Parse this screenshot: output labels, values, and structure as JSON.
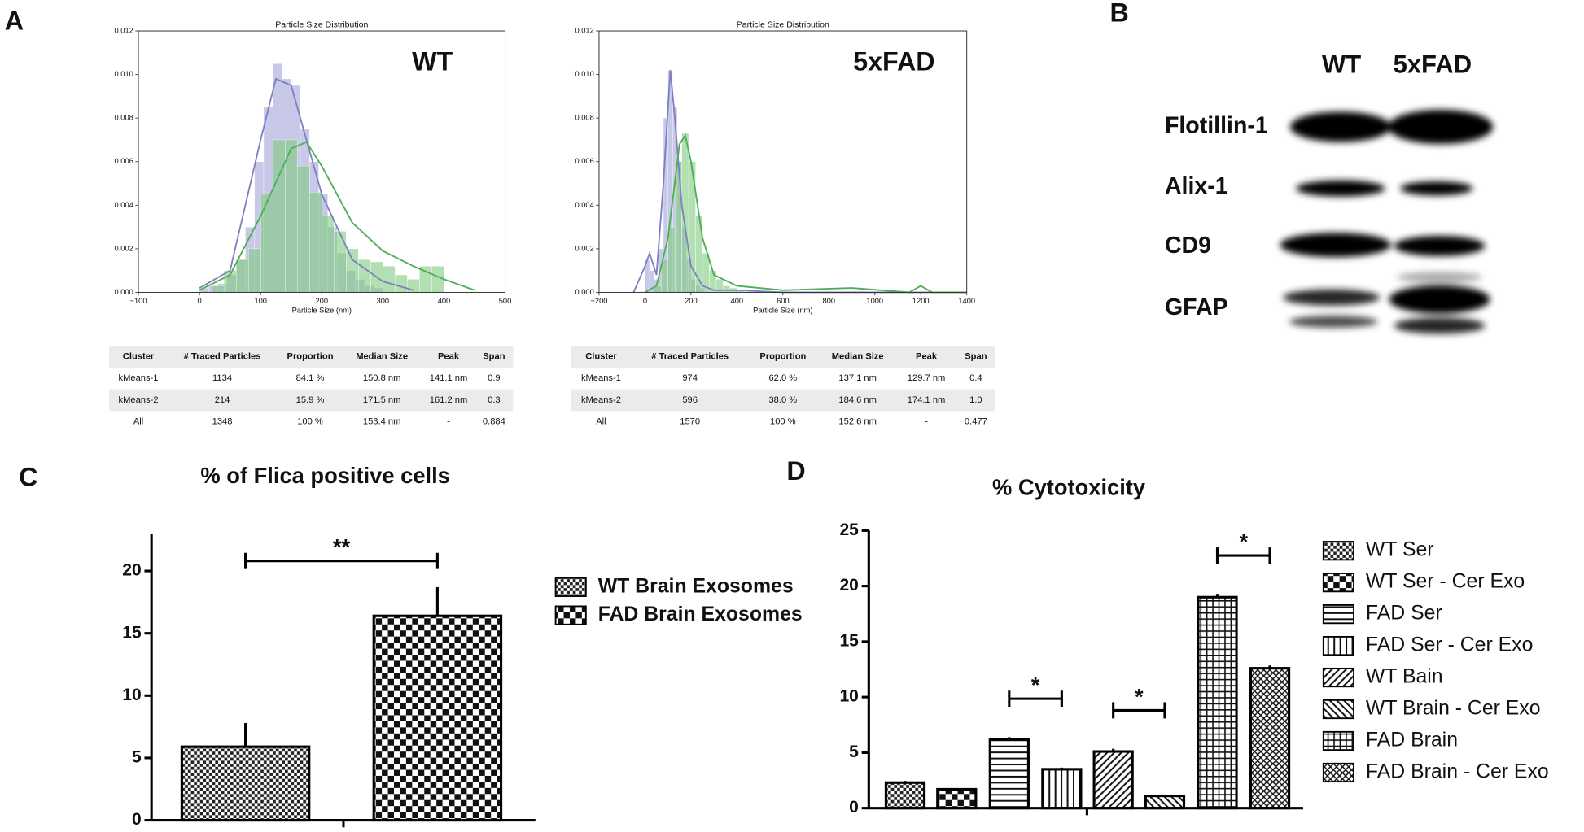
{
  "panel_labels": [
    "A",
    "B",
    "C",
    "D"
  ],
  "chart_data": [
    {
      "type": "histogram",
      "title": "Particle Size Distribution",
      "xlabel": "Particle Size (nm)",
      "label": "WT",
      "xlim": [
        -100,
        500
      ],
      "ylim": [
        0,
        0.012
      ],
      "xticks": [
        {
          "value": -100,
          "label": "−100"
        },
        0,
        100,
        200,
        300,
        400,
        500
      ],
      "yticks": [
        {
          "value": 0,
          "label": "0.000"
        },
        {
          "value": 0.002,
          "label": "0.002"
        },
        {
          "value": 0.004,
          "label": "0.004"
        },
        {
          "value": 0.006,
          "label": "0.006"
        },
        {
          "value": 0.008,
          "label": "0.008"
        },
        {
          "value": 0.01,
          "label": "0.010"
        },
        {
          "value": 0.012,
          "label": "0.012"
        }
      ],
      "series": [
        {
          "color": "#a4a4db",
          "bins": [
            0,
            15,
            30,
            45,
            60,
            75,
            90,
            105,
            120,
            135,
            150,
            165,
            180,
            195,
            210,
            225,
            240,
            255,
            270,
            285,
            300
          ],
          "values": [
            0.0002,
            0.0003,
            0.0004,
            0.0008,
            0.0015,
            0.003,
            0.006,
            0.0085,
            0.0105,
            0.0098,
            0.0095,
            0.0075,
            0.006,
            0.0045,
            0.003,
            0.0018,
            0.001,
            0.0006,
            0.0003,
            0.0002
          ]
        },
        {
          "color": "#7fcc7f",
          "bins": [
            20,
            40,
            60,
            80,
            100,
            120,
            140,
            160,
            180,
            200,
            220,
            240,
            260,
            280,
            300,
            320,
            340,
            360,
            380,
            400
          ],
          "values": [
            0.0003,
            0.001,
            0.0015,
            0.002,
            0.0045,
            0.007,
            0.007,
            0.0058,
            0.0046,
            0.0035,
            0.0028,
            0.002,
            0.0015,
            0.0014,
            0.0012,
            0.0008,
            0.0006,
            0.0012,
            0.0012
          ]
        }
      ],
      "lines": [
        {
          "color": "#7f7fc2",
          "x": [
            0,
            50,
            100,
            125,
            150,
            175,
            200,
            250,
            300,
            350
          ],
          "values": [
            0.0002,
            0.001,
            0.007,
            0.0098,
            0.0095,
            0.007,
            0.0045,
            0.0015,
            0.0005,
            0.0001
          ]
        },
        {
          "color": "#4fae55",
          "x": [
            0,
            50,
            100,
            150,
            175,
            200,
            250,
            300,
            350,
            400,
            450
          ],
          "values": [
            0.0001,
            0.0008,
            0.0035,
            0.0066,
            0.0069,
            0.0058,
            0.0032,
            0.0019,
            0.0012,
            0.0006,
            0.0001
          ]
        }
      ]
    },
    {
      "type": "histogram",
      "title": "Particle Size Distribution",
      "xlabel": "Particle Size (nm)",
      "label": "5xFAD",
      "xlim": [
        -200,
        1400
      ],
      "ylim": [
        0,
        0.012
      ],
      "xticks": [
        {
          "value": -200,
          "label": "−200"
        },
        0,
        200,
        400,
        600,
        800,
        1000,
        1200,
        1400
      ],
      "yticks": [
        {
          "value": 0,
          "label": "0.000"
        },
        {
          "value": 0.002,
          "label": "0.002"
        },
        {
          "value": 0.004,
          "label": "0.004"
        },
        {
          "value": 0.006,
          "label": "0.006"
        },
        {
          "value": 0.008,
          "label": "0.008"
        },
        {
          "value": 0.01,
          "label": "0.010"
        },
        {
          "value": 0.012,
          "label": "0.012"
        }
      ],
      "series": [
        {
          "color": "#a4a4db",
          "bins": [
            0,
            20,
            40,
            60,
            80,
            100,
            120,
            140,
            160,
            180,
            200,
            220,
            240,
            260
          ],
          "values": [
            0.0015,
            0.001,
            0.0006,
            0.002,
            0.008,
            0.0102,
            0.0085,
            0.006,
            0.003,
            0.0015,
            0.0006,
            0.0003,
            0.0002
          ]
        },
        {
          "color": "#7fcc7f",
          "bins": [
            40,
            70,
            100,
            130,
            160,
            190,
            220,
            250,
            280,
            310,
            340,
            370,
            400,
            430
          ],
          "values": [
            0.0003,
            0.0015,
            0.003,
            0.006,
            0.0073,
            0.006,
            0.0035,
            0.0018,
            0.001,
            0.0006,
            0.0003,
            0.0002,
            0.0001
          ]
        }
      ],
      "lines": [
        {
          "color": "#7f7fc2",
          "x": [
            -50,
            0,
            20,
            50,
            80,
            110,
            130,
            160,
            200,
            250,
            300,
            400,
            600,
            1000,
            1400
          ],
          "values": [
            0,
            0.0012,
            0.0018,
            0.0008,
            0.005,
            0.0102,
            0.008,
            0.004,
            0.0012,
            0.0003,
            0.0001,
            0.0001,
            0,
            0,
            0
          ]
        },
        {
          "color": "#4fae55",
          "x": [
            0,
            50,
            100,
            150,
            175,
            200,
            250,
            300,
            400,
            600,
            900,
            1150,
            1200,
            1250,
            1400
          ],
          "values": [
            0,
            0.0003,
            0.0025,
            0.0068,
            0.0072,
            0.006,
            0.0025,
            0.0008,
            0.0003,
            0.0001,
            0.0002,
            0,
            0.0003,
            0,
            0
          ]
        }
      ]
    },
    {
      "type": "bar",
      "title": "% of Flica positive cells",
      "ylim": [
        0,
        23
      ],
      "yticks": [
        0,
        5,
        10,
        15,
        20
      ],
      "series": [
        {
          "name": "WT Brain Exosomes",
          "pattern": "checker-small",
          "values": [
            5.9
          ],
          "errors": [
            1.9
          ]
        },
        {
          "name": "FAD Brain Exosomes",
          "pattern": "checker-large",
          "values": [
            16.4
          ],
          "errors": [
            2.3
          ]
        }
      ],
      "annotations": [
        {
          "text": "**",
          "between": [
            0,
            1
          ]
        }
      ]
    },
    {
      "type": "bar",
      "title": "% Cytotoxicity",
      "ylim": [
        0,
        25
      ],
      "yticks": [
        0,
        5,
        10,
        15,
        20,
        25
      ],
      "series": [
        {
          "name": "WT Ser",
          "pattern": "checker-small",
          "values": [
            2.3
          ],
          "errors": [
            0.15
          ]
        },
        {
          "name": "WT Ser - Cer Exo",
          "pattern": "checker-large",
          "values": [
            1.7
          ],
          "errors": [
            0.1
          ]
        },
        {
          "name": "FAD Ser",
          "pattern": "hlines",
          "values": [
            6.2
          ],
          "errors": [
            0.2
          ]
        },
        {
          "name": "FAD Ser - Cer Exo",
          "pattern": "vlines",
          "values": [
            3.5
          ],
          "errors": [
            0.15
          ]
        },
        {
          "name": "WT Bain",
          "pattern": "diag",
          "values": [
            5.1
          ],
          "errors": [
            0.25
          ]
        },
        {
          "name": "WT Brain - Cer Exo",
          "pattern": "antidiag",
          "values": [
            1.1
          ],
          "errors": [
            0.1
          ]
        },
        {
          "name": "FAD Brain",
          "pattern": "grid",
          "values": [
            19.0
          ],
          "errors": [
            0.3
          ]
        },
        {
          "name": "FAD Brain - Cer Exo",
          "pattern": "crosshatch",
          "values": [
            12.6
          ],
          "errors": [
            0.25
          ]
        }
      ],
      "annotations": [
        {
          "text": "*",
          "between": [
            2,
            3
          ]
        },
        {
          "text": "*",
          "between": [
            4,
            5
          ]
        },
        {
          "text": "*",
          "between": [
            6,
            7
          ]
        }
      ]
    }
  ],
  "tables": [
    {
      "header": [
        "Cluster",
        "# Traced Particles",
        "Proportion",
        "Median Size",
        "Peak",
        "Span"
      ],
      "rows": [
        [
          "kMeans-1",
          "1134",
          "84.1 %",
          "150.8 nm",
          "141.1 nm",
          "0.9"
        ],
        [
          "kMeans-2",
          "214",
          "15.9 %",
          "171.5 nm",
          "161.2 nm",
          "0.3"
        ],
        [
          "All",
          "1348",
          "100 %",
          "153.4 nm",
          "-",
          "0.884"
        ]
      ]
    },
    {
      "header": [
        "Cluster",
        "# Traced Particles",
        "Proportion",
        "Median Size",
        "Peak",
        "Span"
      ],
      "rows": [
        [
          "kMeans-1",
          "974",
          "62.0 %",
          "137.1 nm",
          "129.7 nm",
          "0.4"
        ],
        [
          "kMeans-2",
          "596",
          "38.0 %",
          "184.6 nm",
          "174.1 nm",
          "1.0"
        ],
        [
          "All",
          "1570",
          "100 %",
          "152.6 nm",
          "-",
          "0.477"
        ]
      ]
    }
  ],
  "western_blot": {
    "columns": [
      "WT",
      "5xFAD"
    ],
    "rows": [
      "Flotillin-1",
      "Alix-1",
      "CD9",
      "GFAP"
    ]
  }
}
